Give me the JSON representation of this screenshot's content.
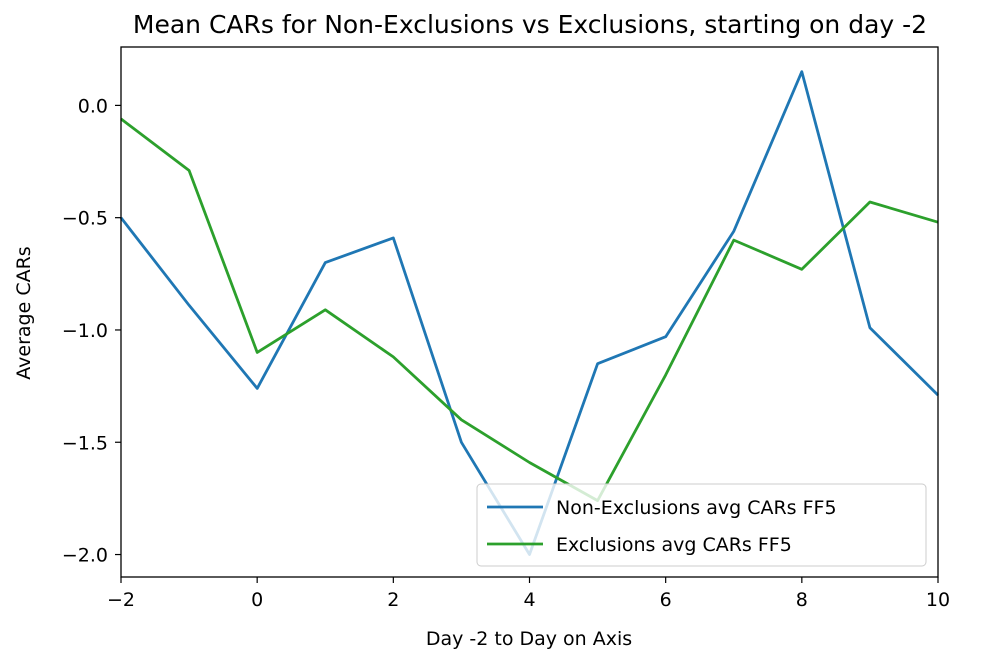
{
  "chart_data": {
    "type": "line",
    "title": "Mean CARs for  Non-Exclusions vs Exclusions, starting on day -2",
    "xlabel": "Day -2 to Day on Axis",
    "ylabel": "Average CARs",
    "xlim": [
      -2,
      10
    ],
    "ylim": [
      -2.1,
      0.26
    ],
    "x": [
      -2,
      -1,
      0,
      1,
      2,
      3,
      4,
      5,
      6,
      7,
      8,
      9,
      10
    ],
    "xticks": [
      -2,
      0,
      2,
      4,
      6,
      8,
      10
    ],
    "xtick_labels": [
      "−2",
      "0",
      "2",
      "4",
      "6",
      "8",
      "10"
    ],
    "yticks": [
      0.0,
      -0.5,
      -1.0,
      -1.5,
      -2.0
    ],
    "ytick_labels": [
      "0.0",
      "−0.5",
      "−1.0",
      "−1.5",
      "−2.0"
    ],
    "grid": false,
    "legend_position": "lower-right",
    "series": [
      {
        "name": "Non-Exclusions avg CARs FF5",
        "color": "#1f77b4",
        "values": [
          -0.5,
          -0.89,
          -1.26,
          -0.7,
          -0.59,
          -1.5,
          -2.0,
          -1.15,
          -1.03,
          -0.56,
          0.15,
          -0.99,
          -1.29
        ]
      },
      {
        "name": "Exclusions avg CARs FF5",
        "color": "#2ca02c",
        "values": [
          -0.06,
          -0.29,
          -1.1,
          -0.91,
          -1.12,
          -1.4,
          -1.59,
          -1.76,
          -1.2,
          -0.6,
          -0.73,
          -0.43,
          -0.52
        ]
      }
    ]
  }
}
